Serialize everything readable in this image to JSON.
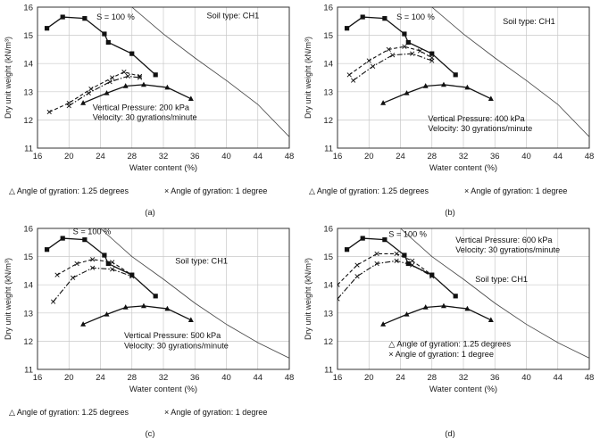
{
  "chart_data": [
    {
      "type": "line",
      "panel_label": "(a)",
      "xlabel": "Water content (%)",
      "ylabel": "Dry unit weight (kN/m³)",
      "xlim": [
        16,
        48
      ],
      "ylim": [
        11,
        16
      ],
      "xticks": [
        16,
        20,
        24,
        28,
        32,
        36,
        40,
        44,
        48
      ],
      "yticks": [
        11,
        12,
        13,
        14,
        15,
        16
      ],
      "grid": true,
      "annotations": [
        {
          "text": "S = 100 %",
          "at": [
            23.5,
            15.55
          ]
        },
        {
          "text": "Soil type: CH1",
          "at": [
            37.5,
            15.6
          ]
        },
        {
          "text": "Vertical Pressure: 200 kPa",
          "at": [
            23.0,
            12.35
          ]
        },
        {
          "text": "Velocity: 30 gyrations/minute",
          "at": [
            23.0,
            12.0
          ]
        }
      ],
      "legend_items": [
        "Angle of gyration: 1.25 degrees",
        "Angle of gyration: 1 degree"
      ],
      "series": [
        {
          "marker": "square",
          "line": "solid",
          "points": [
            [
              17.2,
              15.25
            ],
            [
              19.2,
              15.65
            ],
            [
              22.0,
              15.6
            ],
            [
              24.5,
              15.05
            ],
            [
              25.0,
              14.75
            ],
            [
              28.0,
              14.35
            ],
            [
              31.0,
              13.6
            ]
          ]
        },
        {
          "marker": "triangle",
          "line": "solid",
          "points": [
            [
              21.8,
              12.6
            ],
            [
              24.8,
              12.95
            ],
            [
              27.2,
              13.2
            ],
            [
              29.5,
              13.25
            ],
            [
              32.5,
              13.15
            ],
            [
              35.5,
              12.75
            ]
          ]
        },
        {
          "marker": "cross",
          "line": "dashed",
          "points": [
            [
              17.5,
              12.28
            ],
            [
              20.0,
              12.6
            ],
            [
              22.8,
              13.1
            ],
            [
              25.5,
              13.5
            ],
            [
              27.0,
              13.7
            ],
            [
              29.0,
              13.55
            ]
          ]
        },
        {
          "marker": "cross",
          "line": "dashdot",
          "points": [
            [
              20.0,
              12.5
            ],
            [
              22.5,
              12.95
            ],
            [
              25.2,
              13.35
            ],
            [
              27.5,
              13.55
            ],
            [
              29.0,
              13.5
            ]
          ]
        }
      ],
      "saturation_line": [
        [
          28.0,
          16.0
        ],
        [
          32.0,
          15.05
        ],
        [
          36.0,
          14.2
        ],
        [
          40.0,
          13.4
        ],
        [
          44.0,
          12.55
        ],
        [
          48.0,
          11.4
        ]
      ]
    },
    {
      "type": "line",
      "panel_label": "(b)",
      "xlabel": "Water content (%)",
      "ylabel": "Dry unit weight (kN/m³)",
      "xlim": [
        16,
        48
      ],
      "ylim": [
        11,
        16
      ],
      "xticks": [
        16,
        20,
        24,
        28,
        32,
        36,
        40,
        44,
        48
      ],
      "yticks": [
        11,
        12,
        13,
        14,
        15,
        16
      ],
      "grid": true,
      "annotations": [
        {
          "text": "S = 100 %",
          "at": [
            23.5,
            15.55
          ]
        },
        {
          "text": "Soil type: CH1",
          "at": [
            37.0,
            15.4
          ]
        },
        {
          "text": "Vertical Pressure: 400 kPa",
          "at": [
            27.5,
            11.95
          ]
        },
        {
          "text": "Velocity: 30 gyrations/minute",
          "at": [
            27.5,
            11.6
          ]
        }
      ],
      "legend_items": [
        "Angle of gyration: 1.25 degrees",
        "Angle of gyration: 1 degree"
      ],
      "series": [
        {
          "marker": "square",
          "line": "solid",
          "points": [
            [
              17.2,
              15.25
            ],
            [
              19.2,
              15.65
            ],
            [
              22.0,
              15.6
            ],
            [
              24.5,
              15.05
            ],
            [
              25.0,
              14.75
            ],
            [
              28.0,
              14.35
            ],
            [
              31.0,
              13.6
            ]
          ]
        },
        {
          "marker": "triangle",
          "line": "solid",
          "points": [
            [
              21.8,
              12.6
            ],
            [
              24.8,
              12.95
            ],
            [
              27.2,
              13.2
            ],
            [
              29.5,
              13.25
            ],
            [
              32.5,
              13.15
            ],
            [
              35.5,
              12.75
            ]
          ]
        },
        {
          "marker": "cross",
          "line": "dashed",
          "points": [
            [
              17.5,
              13.6
            ],
            [
              20.0,
              14.1
            ],
            [
              22.5,
              14.5
            ],
            [
              24.5,
              14.6
            ],
            [
              26.5,
              14.45
            ],
            [
              28.0,
              14.2
            ]
          ]
        },
        {
          "marker": "cross",
          "line": "dashdot",
          "points": [
            [
              18.0,
              13.4
            ],
            [
              20.5,
              13.9
            ],
            [
              23.0,
              14.3
            ],
            [
              25.5,
              14.35
            ],
            [
              28.0,
              14.1
            ]
          ]
        }
      ],
      "saturation_line": [
        [
          28.0,
          16.0
        ],
        [
          32.0,
          15.05
        ],
        [
          36.0,
          14.2
        ],
        [
          40.0,
          13.4
        ],
        [
          44.0,
          12.55
        ],
        [
          48.0,
          11.4
        ]
      ]
    },
    {
      "type": "line",
      "panel_label": "(c)",
      "xlabel": "Water content (%)",
      "ylabel": "Dry unit weight (kN/m³)",
      "xlim": [
        16,
        48
      ],
      "ylim": [
        11,
        16
      ],
      "xticks": [
        16,
        20,
        24,
        28,
        32,
        36,
        40,
        44,
        48
      ],
      "yticks": [
        11,
        12,
        13,
        14,
        15,
        16
      ],
      "grid": true,
      "annotations": [
        {
          "text": "S = 100 %",
          "at": [
            20.5,
            15.8
          ]
        },
        {
          "text": "Soil type: CH1",
          "at": [
            33.5,
            14.75
          ]
        },
        {
          "text": "Vertical Pressure: 500 kPa",
          "at": [
            27.0,
            12.1
          ]
        },
        {
          "text": "Velocity: 30 gyrations/minute",
          "at": [
            27.0,
            11.75
          ]
        }
      ],
      "legend_items": [
        "Angle of gyration: 1.25 degrees",
        "Angle of gyration: 1 degree"
      ],
      "series": [
        {
          "marker": "square",
          "line": "solid",
          "points": [
            [
              17.2,
              15.25
            ],
            [
              19.2,
              15.65
            ],
            [
              22.0,
              15.6
            ],
            [
              24.5,
              15.05
            ],
            [
              25.0,
              14.75
            ],
            [
              28.0,
              14.35
            ],
            [
              31.0,
              13.6
            ]
          ]
        },
        {
          "marker": "triangle",
          "line": "solid",
          "points": [
            [
              21.8,
              12.6
            ],
            [
              24.8,
              12.95
            ],
            [
              27.2,
              13.2
            ],
            [
              29.5,
              13.25
            ],
            [
              32.5,
              13.15
            ],
            [
              35.5,
              12.75
            ]
          ]
        },
        {
          "marker": "cross",
          "line": "dashed",
          "points": [
            [
              18.5,
              14.35
            ],
            [
              21.0,
              14.75
            ],
            [
              23.0,
              14.9
            ],
            [
              25.5,
              14.8
            ],
            [
              28.0,
              14.35
            ]
          ]
        },
        {
          "marker": "cross",
          "line": "dashdot",
          "points": [
            [
              18.0,
              13.4
            ],
            [
              20.5,
              14.25
            ],
            [
              23.0,
              14.6
            ],
            [
              25.5,
              14.55
            ],
            [
              28.0,
              14.3
            ]
          ]
        }
      ],
      "saturation_line": [
        [
          24.0,
          16.0
        ],
        [
          28.0,
          15.0
        ],
        [
          32.0,
          14.2
        ],
        [
          36.0,
          13.35
        ],
        [
          40.0,
          12.6
        ],
        [
          44.0,
          11.95
        ],
        [
          48.0,
          11.4
        ]
      ]
    },
    {
      "type": "line",
      "panel_label": "(d)",
      "xlabel": "Water content (%)",
      "ylabel": "Dry unit weight (kN/m³)",
      "xlim": [
        16,
        48
      ],
      "ylim": [
        11,
        16
      ],
      "xticks": [
        16,
        20,
        24,
        28,
        32,
        36,
        40,
        44,
        48
      ],
      "yticks": [
        11,
        12,
        13,
        14,
        15,
        16
      ],
      "grid": true,
      "annotations": [
        {
          "text": "S = 100 %",
          "at": [
            22.5,
            15.7
          ]
        },
        {
          "text": "Vertical Pressure: 600 kPa",
          "at": [
            31.0,
            15.5
          ]
        },
        {
          "text": "Velocity: 30 gyrations/minute",
          "at": [
            31.0,
            15.15
          ]
        },
        {
          "text": "Soil type: CH1",
          "at": [
            33.5,
            14.1
          ]
        },
        {
          "text": "△ Angle of gyration: 1.25 degrees",
          "at": [
            22.5,
            11.8
          ]
        },
        {
          "text": "× Angle of gyration: 1 degree",
          "at": [
            22.5,
            11.45
          ]
        }
      ],
      "series": [
        {
          "marker": "square",
          "line": "solid",
          "points": [
            [
              17.2,
              15.25
            ],
            [
              19.2,
              15.65
            ],
            [
              22.0,
              15.6
            ],
            [
              24.5,
              15.05
            ],
            [
              25.0,
              14.75
            ],
            [
              28.0,
              14.35
            ],
            [
              31.0,
              13.6
            ]
          ]
        },
        {
          "marker": "triangle",
          "line": "solid",
          "points": [
            [
              21.8,
              12.6
            ],
            [
              24.8,
              12.95
            ],
            [
              27.2,
              13.2
            ],
            [
              29.5,
              13.25
            ],
            [
              32.5,
              13.15
            ],
            [
              35.5,
              12.75
            ]
          ]
        },
        {
          "marker": "cross",
          "line": "dashed",
          "points": [
            [
              16.0,
              14.0
            ],
            [
              18.5,
              14.7
            ],
            [
              21.0,
              15.1
            ],
            [
              23.5,
              15.1
            ],
            [
              25.5,
              14.85
            ],
            [
              28.0,
              14.35
            ]
          ]
        },
        {
          "marker": "cross",
          "line": "dashdot",
          "points": [
            [
              16.0,
              13.5
            ],
            [
              18.5,
              14.3
            ],
            [
              21.0,
              14.75
            ],
            [
              23.5,
              14.85
            ],
            [
              25.5,
              14.7
            ],
            [
              28.0,
              14.3
            ]
          ]
        }
      ],
      "saturation_line": [
        [
          24.0,
          16.0
        ],
        [
          28.0,
          15.0
        ],
        [
          32.0,
          14.2
        ],
        [
          36.0,
          13.35
        ],
        [
          40.0,
          12.6
        ],
        [
          44.0,
          11.95
        ],
        [
          48.0,
          11.4
        ]
      ]
    }
  ]
}
